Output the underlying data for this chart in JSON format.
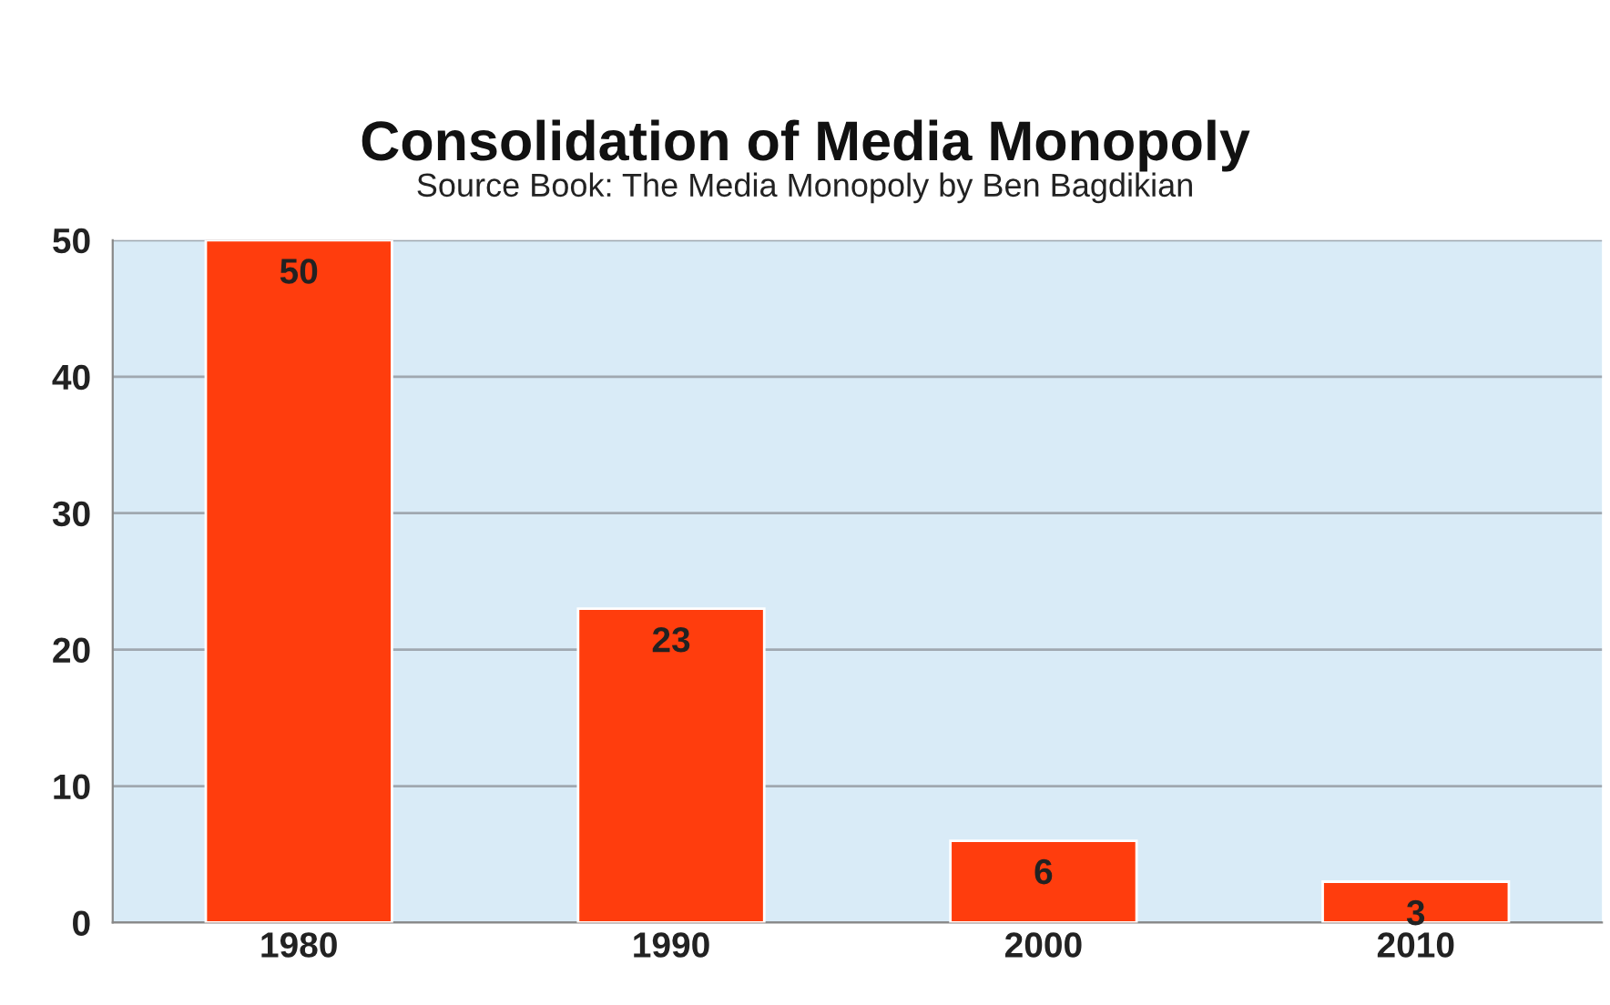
{
  "chart_data": {
    "type": "bar",
    "title": "Consolidation of Media Monopoly",
    "subtitle": "Source Book: The Media Monopoly by Ben Bagdikian",
    "categories": [
      "1980",
      "1990",
      "2000",
      "2010"
    ],
    "values": [
      50,
      23,
      6,
      3
    ],
    "color": "#ff3d0d",
    "ylim": [
      0,
      50
    ],
    "yticks": [
      0,
      10,
      20,
      30,
      40,
      50
    ],
    "grid": "y",
    "data_labels": true
  }
}
